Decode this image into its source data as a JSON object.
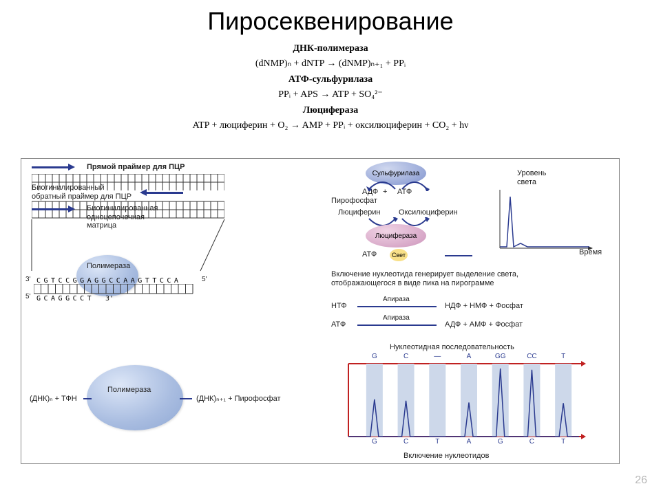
{
  "title": "Пиросеквенирование",
  "page_number": "26",
  "equations": {
    "e1_title": "ДНК-полимераза",
    "e1": "(dNMP)ₙ + dNTP → (dNMP)ₙ₊₁ + PPᵢ",
    "e2_title": "АТФ-сульфурилаза",
    "e2": "PPᵢ + APS → ATP + SO₄²⁻",
    "e3_title": "Люцифераза",
    "e3": "ATP + люциферин + O₂ → AMP + PPᵢ + оксилюциферин + CO₂ + hν"
  },
  "left": {
    "primer_fwd": "Прямой праймер для ПЦР",
    "primer_rev": "Биотинилированный\nобратный праймер для ПЦР",
    "template": "Биотинилированная\nодноцепочечная\nматрица",
    "polymerase": "Полимераза",
    "end3": "3'",
    "end5": "5'",
    "seq_top": "CGTCCGGAGGCCAAGTTCCA",
    "seq_bot": "GCAGGCCT",
    "seq_bot_3": "3'",
    "top_5": "5'",
    "reaction": "(ДНК)ₙ + ТФН",
    "reaction_out": "(ДНК)ₙ₊₁ + Пирофосфат"
  },
  "right": {
    "sulfurilase": "Сульфурилаза",
    "adf": "АДФ",
    "atf": "АТФ",
    "pyrophosphate": "Пирофосфат",
    "luciferin": "Люциферин",
    "oxyluciferin": "Оксилюциферин",
    "luciferase": "Люцифераза",
    "svet": "Свет",
    "light_level": "Уровень\nсвета",
    "time": "Время",
    "incorporation": "Включение нуклеотида генерирует выделение света,\nотображающегося в виде пика на пирограмме",
    "apyrase": "Апираза",
    "ntf": "НТФ",
    "ntf_out": "НДФ + НМФ + Фосфат",
    "atf2": "АТФ",
    "atf_out": "АДФ + АМФ + Фосфат",
    "pyrogram_title": "Нуклеотидная последовательность",
    "pyrogram_top": [
      "G",
      "C",
      "—",
      "A",
      "GG",
      "CC",
      "T"
    ],
    "pyrogram_bottom": [
      "G",
      "C",
      "T",
      "A",
      "G",
      "C",
      "T"
    ],
    "inclusion_label": "Включение нуклеотидов",
    "peaks": [
      60,
      58,
      0,
      55,
      110,
      108,
      54
    ],
    "bar_color": "#cdd8ea",
    "peak_stroke": "#2a3a8f",
    "bg": "#ffffff"
  }
}
